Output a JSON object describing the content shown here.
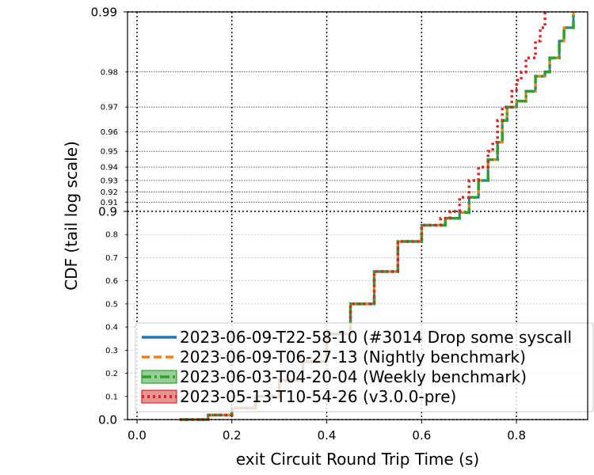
{
  "chart_data": {
    "type": "line",
    "title": "",
    "xlabel": "exit Circuit Round Trip Time (s)",
    "ylabel": "CDF (tail log scale)",
    "xlim": [
      -0.02,
      0.95
    ],
    "y_scale": "tail-log (linear 0–0.9, log tail 0.9–0.99)",
    "ylim": [
      0.0,
      0.99
    ],
    "grid": true,
    "legend_position": "lower-right",
    "x_ticks": [
      "0.0",
      "0.2",
      "0.4",
      "0.6",
      "0.8"
    ],
    "x_tick_values": [
      0.0,
      0.2,
      0.4,
      0.6,
      0.8
    ],
    "y_major_ticks": [
      {
        "value": 0.0,
        "label": "0.0"
      },
      {
        "value": 0.9,
        "label": "0.9"
      },
      {
        "value": 0.99,
        "label": "0.99"
      }
    ],
    "y_minor_ticks": [
      {
        "value": 0.1,
        "label": "0.1"
      },
      {
        "value": 0.2,
        "label": "0.2"
      },
      {
        "value": 0.3,
        "label": "0.3"
      },
      {
        "value": 0.4,
        "label": "0.4"
      },
      {
        "value": 0.5,
        "label": "0.5"
      },
      {
        "value": 0.6,
        "label": "0.6"
      },
      {
        "value": 0.7,
        "label": "0.7"
      },
      {
        "value": 0.8,
        "label": "0.8"
      },
      {
        "value": 0.91,
        "label": "0.91"
      },
      {
        "value": 0.92,
        "label": "0.92"
      },
      {
        "value": 0.93,
        "label": "0.93"
      },
      {
        "value": 0.94,
        "label": "0.94"
      },
      {
        "value": 0.95,
        "label": "0.95"
      },
      {
        "value": 0.96,
        "label": "0.96"
      },
      {
        "value": 0.97,
        "label": "0.97"
      },
      {
        "value": 0.98,
        "label": "0.98"
      }
    ],
    "series": [
      {
        "name": "2023-06-09-T22-58-10 (#3014 Drop some syscall",
        "color": "#1f77b4",
        "style": "solid",
        "x": [
          0.09,
          0.15,
          0.2,
          0.25,
          0.3,
          0.35,
          0.4,
          0.45,
          0.5,
          0.55,
          0.6,
          0.65,
          0.68,
          0.7,
          0.72,
          0.74,
          0.76,
          0.77,
          0.78,
          0.8,
          0.82,
          0.84,
          0.86,
          0.87,
          0.89,
          0.9,
          0.92
        ],
        "y": [
          0.0,
          0.02,
          0.05,
          0.1,
          0.17,
          0.25,
          0.37,
          0.5,
          0.64,
          0.77,
          0.84,
          0.87,
          0.895,
          0.915,
          0.93,
          0.945,
          0.955,
          0.965,
          0.97,
          0.972,
          0.975,
          0.979,
          0.98,
          0.983,
          0.986,
          0.988,
          0.99
        ]
      },
      {
        "name": "2023-06-09-T06-27-13 (Nightly benchmark)",
        "color": "#ff7f0e",
        "style": "dashed",
        "x": [
          0.09,
          0.15,
          0.2,
          0.25,
          0.3,
          0.35,
          0.4,
          0.45,
          0.5,
          0.55,
          0.6,
          0.65,
          0.68,
          0.7,
          0.72,
          0.74,
          0.76,
          0.77,
          0.78,
          0.8,
          0.82,
          0.84,
          0.86,
          0.87,
          0.89,
          0.9,
          0.92
        ],
        "y": [
          0.0,
          0.02,
          0.05,
          0.1,
          0.17,
          0.25,
          0.37,
          0.5,
          0.64,
          0.77,
          0.84,
          0.87,
          0.895,
          0.915,
          0.93,
          0.945,
          0.955,
          0.965,
          0.97,
          0.972,
          0.975,
          0.979,
          0.98,
          0.983,
          0.986,
          0.988,
          0.99
        ]
      },
      {
        "name": "2023-06-03-T04-20-04 (Weekly benchmark)",
        "color": "#2ca02c",
        "style": "dashdot",
        "x": [
          0.09,
          0.15,
          0.2,
          0.25,
          0.3,
          0.35,
          0.4,
          0.45,
          0.5,
          0.55,
          0.6,
          0.65,
          0.68,
          0.7,
          0.72,
          0.74,
          0.76,
          0.77,
          0.78,
          0.8,
          0.82,
          0.84,
          0.86,
          0.87,
          0.89,
          0.9,
          0.92
        ],
        "y": [
          0.0,
          0.02,
          0.05,
          0.1,
          0.17,
          0.25,
          0.37,
          0.5,
          0.64,
          0.77,
          0.84,
          0.87,
          0.895,
          0.915,
          0.93,
          0.945,
          0.955,
          0.965,
          0.97,
          0.972,
          0.975,
          0.979,
          0.98,
          0.983,
          0.986,
          0.988,
          0.99
        ]
      },
      {
        "name": "2023-05-13-T10-54-26 (v3.0.0-pre)",
        "color": "#d62728",
        "style": "dotted",
        "x": [
          0.09,
          0.15,
          0.2,
          0.25,
          0.3,
          0.35,
          0.4,
          0.45,
          0.5,
          0.55,
          0.6,
          0.64,
          0.66,
          0.68,
          0.7,
          0.72,
          0.74,
          0.75,
          0.76,
          0.77,
          0.79,
          0.8,
          0.81,
          0.82,
          0.84,
          0.85,
          0.86
        ],
        "y": [
          0.0,
          0.02,
          0.05,
          0.1,
          0.17,
          0.25,
          0.37,
          0.5,
          0.64,
          0.77,
          0.84,
          0.87,
          0.9,
          0.915,
          0.93,
          0.94,
          0.95,
          0.955,
          0.965,
          0.97,
          0.975,
          0.978,
          0.98,
          0.983,
          0.986,
          0.988,
          0.99
        ]
      }
    ]
  }
}
